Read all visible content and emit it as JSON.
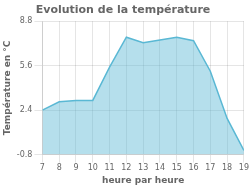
{
  "chart_data": {
    "type": "area",
    "title": "Evolution de la température",
    "xlabel": "heure par heure",
    "ylabel": "Température en °C",
    "x": [
      7,
      8,
      9,
      10,
      11,
      12,
      13,
      14,
      15,
      16,
      17,
      18,
      19
    ],
    "values": [
      2.4,
      3.0,
      3.1,
      3.1,
      5.5,
      7.65,
      7.25,
      7.45,
      7.65,
      7.4,
      5.2,
      1.8,
      -0.5
    ],
    "color": "#5ab8d4",
    "xlim": [
      7,
      19
    ],
    "xticks": [
      7,
      8,
      9,
      10,
      11,
      12,
      13,
      14,
      15,
      16,
      17,
      18,
      19
    ],
    "ylim": [
      -0.8,
      8.8
    ],
    "yticks": [
      -0.8,
      2.4,
      5.6,
      8.8
    ],
    "grid": true
  }
}
